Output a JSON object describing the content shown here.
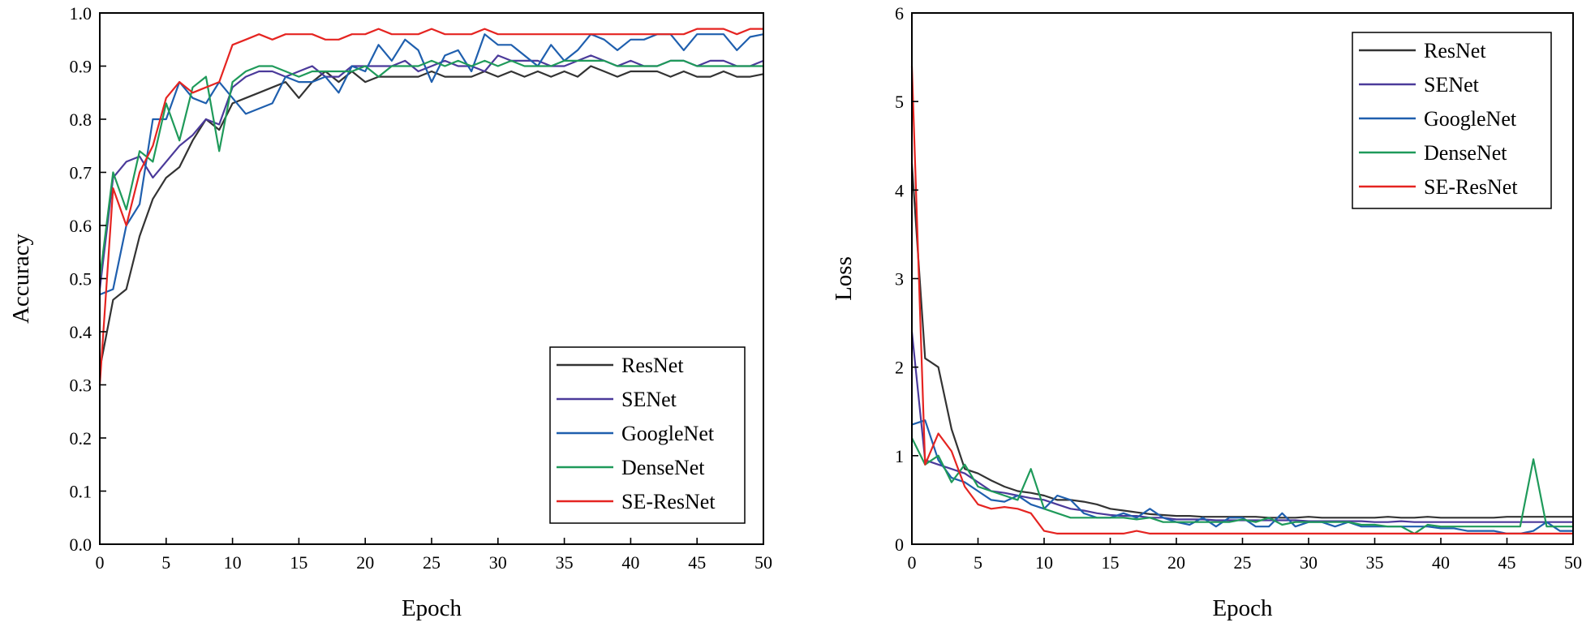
{
  "chart_data": [
    {
      "type": "line",
      "title": "",
      "xlabel": "Epoch",
      "ylabel": "Accuracy",
      "xlim": [
        0,
        50
      ],
      "ylim": [
        0,
        1.0
      ],
      "xticks": [
        "0",
        "5",
        "10",
        "15",
        "20",
        "25",
        "30",
        "35",
        "40",
        "45",
        "50"
      ],
      "yticks": [
        "0.0",
        "0.1",
        "0.2",
        "0.3",
        "0.4",
        "0.5",
        "0.6",
        "0.7",
        "0.8",
        "0.9",
        "1.0"
      ],
      "grid": false,
      "legend_position": "bottom-right",
      "series": [
        {
          "name": "ResNet",
          "color": "#333333",
          "x": [
            0,
            1,
            2,
            3,
            4,
            5,
            6,
            7,
            8,
            9,
            10,
            11,
            12,
            13,
            14,
            15,
            16,
            17,
            18,
            19,
            20,
            21,
            22,
            23,
            24,
            25,
            26,
            27,
            28,
            29,
            30,
            31,
            32,
            33,
            34,
            35,
            36,
            37,
            38,
            39,
            40,
            41,
            42,
            43,
            44,
            45,
            46,
            47,
            48,
            49,
            50
          ],
          "values": [
            0.33,
            0.46,
            0.48,
            0.58,
            0.65,
            0.69,
            0.71,
            0.76,
            0.8,
            0.78,
            0.83,
            0.84,
            0.85,
            0.86,
            0.87,
            0.84,
            0.87,
            0.89,
            0.87,
            0.89,
            0.87,
            0.88,
            0.88,
            0.88,
            0.88,
            0.89,
            0.88,
            0.88,
            0.88,
            0.89,
            0.88,
            0.89,
            0.88,
            0.89,
            0.88,
            0.89,
            0.88,
            0.9,
            0.89,
            0.88,
            0.89,
            0.89,
            0.89,
            0.88,
            0.89,
            0.88,
            0.88,
            0.89,
            0.88,
            0.88,
            0.885
          ]
        },
        {
          "name": "SENet",
          "color": "#4b3a9a",
          "x": [
            0,
            1,
            2,
            3,
            4,
            5,
            6,
            7,
            8,
            9,
            10,
            11,
            12,
            13,
            14,
            15,
            16,
            17,
            18,
            19,
            20,
            21,
            22,
            23,
            24,
            25,
            26,
            27,
            28,
            29,
            30,
            31,
            32,
            33,
            34,
            35,
            36,
            37,
            38,
            39,
            40,
            41,
            42,
            43,
            44,
            45,
            46,
            47,
            48,
            49,
            50
          ],
          "values": [
            0.48,
            0.69,
            0.72,
            0.73,
            0.69,
            0.72,
            0.75,
            0.77,
            0.8,
            0.79,
            0.86,
            0.88,
            0.89,
            0.89,
            0.88,
            0.89,
            0.9,
            0.88,
            0.88,
            0.9,
            0.9,
            0.9,
            0.9,
            0.91,
            0.89,
            0.9,
            0.91,
            0.9,
            0.9,
            0.89,
            0.92,
            0.91,
            0.91,
            0.91,
            0.9,
            0.9,
            0.91,
            0.92,
            0.91,
            0.9,
            0.91,
            0.9,
            0.9,
            0.91,
            0.91,
            0.9,
            0.91,
            0.91,
            0.9,
            0.9,
            0.91
          ]
        },
        {
          "name": "GoogleNet",
          "color": "#1f5fae",
          "x": [
            0,
            1,
            2,
            3,
            4,
            5,
            6,
            7,
            8,
            9,
            10,
            11,
            12,
            13,
            14,
            15,
            16,
            17,
            18,
            19,
            20,
            21,
            22,
            23,
            24,
            25,
            26,
            27,
            28,
            29,
            30,
            31,
            32,
            33,
            34,
            35,
            36,
            37,
            38,
            39,
            40,
            41,
            42,
            43,
            44,
            45,
            46,
            47,
            48,
            49,
            50
          ],
          "values": [
            0.47,
            0.48,
            0.6,
            0.64,
            0.8,
            0.8,
            0.87,
            0.84,
            0.83,
            0.87,
            0.84,
            0.81,
            0.82,
            0.83,
            0.88,
            0.87,
            0.87,
            0.88,
            0.85,
            0.9,
            0.89,
            0.94,
            0.91,
            0.95,
            0.93,
            0.87,
            0.92,
            0.93,
            0.89,
            0.96,
            0.94,
            0.94,
            0.92,
            0.9,
            0.94,
            0.91,
            0.93,
            0.96,
            0.95,
            0.93,
            0.95,
            0.95,
            0.96,
            0.96,
            0.93,
            0.96,
            0.96,
            0.96,
            0.93,
            0.955,
            0.96
          ]
        },
        {
          "name": "DenseNet",
          "color": "#1f9a5a",
          "x": [
            0,
            1,
            2,
            3,
            4,
            5,
            6,
            7,
            8,
            9,
            10,
            11,
            12,
            13,
            14,
            15,
            16,
            17,
            18,
            19,
            20,
            21,
            22,
            23,
            24,
            25,
            26,
            27,
            28,
            29,
            30,
            31,
            32,
            33,
            34,
            35,
            36,
            37,
            38,
            39,
            40,
            41,
            42,
            43,
            44,
            45,
            46,
            47,
            48,
            49,
            50
          ],
          "values": [
            0.5,
            0.7,
            0.63,
            0.74,
            0.72,
            0.83,
            0.76,
            0.86,
            0.88,
            0.74,
            0.87,
            0.89,
            0.9,
            0.9,
            0.89,
            0.88,
            0.89,
            0.89,
            0.89,
            0.89,
            0.9,
            0.88,
            0.9,
            0.9,
            0.9,
            0.91,
            0.9,
            0.91,
            0.9,
            0.91,
            0.9,
            0.91,
            0.9,
            0.9,
            0.9,
            0.91,
            0.91,
            0.91,
            0.91,
            0.9,
            0.9,
            0.9,
            0.9,
            0.91,
            0.91,
            0.9,
            0.9,
            0.9,
            0.9,
            0.9,
            0.9
          ]
        },
        {
          "name": "SE-ResNet",
          "color": "#e52421",
          "x": [
            0,
            1,
            2,
            3,
            4,
            5,
            6,
            7,
            8,
            9,
            10,
            11,
            12,
            13,
            14,
            15,
            16,
            17,
            18,
            19,
            20,
            21,
            22,
            23,
            24,
            25,
            26,
            27,
            28,
            29,
            30,
            31,
            32,
            33,
            34,
            35,
            36,
            37,
            38,
            39,
            40,
            41,
            42,
            43,
            44,
            45,
            46,
            47,
            48,
            49,
            50
          ],
          "values": [
            0.3,
            0.67,
            0.6,
            0.7,
            0.75,
            0.84,
            0.87,
            0.85,
            0.86,
            0.87,
            0.94,
            0.95,
            0.96,
            0.95,
            0.96,
            0.96,
            0.96,
            0.95,
            0.95,
            0.96,
            0.96,
            0.97,
            0.96,
            0.96,
            0.96,
            0.97,
            0.96,
            0.96,
            0.96,
            0.97,
            0.96,
            0.96,
            0.96,
            0.96,
            0.96,
            0.96,
            0.96,
            0.96,
            0.96,
            0.96,
            0.96,
            0.96,
            0.96,
            0.96,
            0.96,
            0.97,
            0.97,
            0.97,
            0.96,
            0.97,
            0.97
          ]
        }
      ]
    },
    {
      "type": "line",
      "title": "",
      "xlabel": "Epoch",
      "ylabel": "Loss",
      "xlim": [
        0,
        50
      ],
      "ylim": [
        0,
        6
      ],
      "xticks": [
        "0",
        "5",
        "10",
        "15",
        "20",
        "25",
        "30",
        "35",
        "40",
        "45",
        "50"
      ],
      "yticks": [
        "0",
        "1",
        "2",
        "3",
        "4",
        "5",
        "6"
      ],
      "grid": false,
      "legend_position": "top-right",
      "series": [
        {
          "name": "ResNet",
          "color": "#333333",
          "x": [
            0,
            1,
            2,
            3,
            4,
            5,
            6,
            7,
            8,
            9,
            10,
            11,
            12,
            13,
            14,
            15,
            16,
            17,
            18,
            19,
            20,
            21,
            22,
            23,
            24,
            25,
            26,
            27,
            28,
            29,
            30,
            31,
            32,
            33,
            34,
            35,
            36,
            37,
            38,
            39,
            40,
            41,
            42,
            43,
            44,
            45,
            46,
            47,
            48,
            49,
            50
          ],
          "values": [
            4.3,
            2.1,
            2.0,
            1.3,
            0.85,
            0.8,
            0.72,
            0.65,
            0.6,
            0.58,
            0.55,
            0.5,
            0.5,
            0.48,
            0.45,
            0.4,
            0.38,
            0.36,
            0.34,
            0.33,
            0.32,
            0.32,
            0.31,
            0.31,
            0.31,
            0.31,
            0.31,
            0.3,
            0.3,
            0.3,
            0.31,
            0.3,
            0.3,
            0.3,
            0.3,
            0.3,
            0.31,
            0.3,
            0.3,
            0.31,
            0.3,
            0.3,
            0.3,
            0.3,
            0.3,
            0.31,
            0.31,
            0.31,
            0.31,
            0.31,
            0.31
          ]
        },
        {
          "name": "SENet",
          "color": "#4b3a9a",
          "x": [
            0,
            1,
            2,
            3,
            4,
            5,
            6,
            7,
            8,
            9,
            10,
            11,
            12,
            13,
            14,
            15,
            16,
            17,
            18,
            19,
            20,
            21,
            22,
            23,
            24,
            25,
            26,
            27,
            28,
            29,
            30,
            31,
            32,
            33,
            34,
            35,
            36,
            37,
            38,
            39,
            40,
            41,
            42,
            43,
            44,
            45,
            46,
            47,
            48,
            49,
            50
          ],
          "values": [
            2.4,
            0.95,
            0.9,
            0.85,
            0.8,
            0.7,
            0.6,
            0.58,
            0.55,
            0.52,
            0.5,
            0.45,
            0.4,
            0.38,
            0.35,
            0.33,
            0.32,
            0.32,
            0.3,
            0.3,
            0.28,
            0.28,
            0.28,
            0.27,
            0.27,
            0.27,
            0.27,
            0.27,
            0.27,
            0.27,
            0.26,
            0.26,
            0.26,
            0.26,
            0.26,
            0.25,
            0.25,
            0.26,
            0.25,
            0.25,
            0.25,
            0.25,
            0.25,
            0.25,
            0.25,
            0.25,
            0.25,
            0.25,
            0.25,
            0.25,
            0.25
          ]
        },
        {
          "name": "GoogleNet",
          "color": "#1f5fae",
          "x": [
            0,
            1,
            2,
            3,
            4,
            5,
            6,
            7,
            8,
            9,
            10,
            11,
            12,
            13,
            14,
            15,
            16,
            17,
            18,
            19,
            20,
            21,
            22,
            23,
            24,
            25,
            26,
            27,
            28,
            29,
            30,
            31,
            32,
            33,
            34,
            35,
            36,
            37,
            38,
            39,
            40,
            41,
            42,
            43,
            44,
            45,
            46,
            47,
            48,
            49,
            50
          ],
          "values": [
            1.35,
            1.4,
            0.95,
            0.75,
            0.7,
            0.6,
            0.5,
            0.48,
            0.55,
            0.45,
            0.4,
            0.55,
            0.5,
            0.35,
            0.3,
            0.3,
            0.35,
            0.3,
            0.4,
            0.3,
            0.25,
            0.22,
            0.3,
            0.2,
            0.3,
            0.3,
            0.2,
            0.2,
            0.35,
            0.2,
            0.25,
            0.25,
            0.2,
            0.25,
            0.2,
            0.2,
            0.2,
            0.2,
            0.2,
            0.2,
            0.18,
            0.18,
            0.15,
            0.15,
            0.15,
            0.12,
            0.12,
            0.15,
            0.25,
            0.15,
            0.15
          ]
        },
        {
          "name": "DenseNet",
          "color": "#1f9a5a",
          "x": [
            0,
            1,
            2,
            3,
            4,
            5,
            6,
            7,
            8,
            9,
            10,
            11,
            12,
            13,
            14,
            15,
            16,
            17,
            18,
            19,
            20,
            21,
            22,
            23,
            24,
            25,
            26,
            27,
            28,
            29,
            30,
            31,
            32,
            33,
            34,
            35,
            36,
            37,
            38,
            39,
            40,
            41,
            42,
            43,
            44,
            45,
            46,
            47,
            48,
            49,
            50
          ],
          "values": [
            1.2,
            0.9,
            1.0,
            0.7,
            0.9,
            0.65,
            0.6,
            0.55,
            0.5,
            0.85,
            0.4,
            0.35,
            0.3,
            0.3,
            0.3,
            0.3,
            0.3,
            0.28,
            0.3,
            0.25,
            0.25,
            0.25,
            0.25,
            0.25,
            0.25,
            0.28,
            0.25,
            0.3,
            0.22,
            0.25,
            0.25,
            0.25,
            0.25,
            0.25,
            0.22,
            0.22,
            0.2,
            0.2,
            0.12,
            0.22,
            0.2,
            0.2,
            0.2,
            0.2,
            0.2,
            0.2,
            0.2,
            0.96,
            0.2,
            0.2,
            0.2
          ]
        },
        {
          "name": "SE-ResNet",
          "color": "#e52421",
          "x": [
            0,
            1,
            2,
            3,
            4,
            5,
            6,
            7,
            8,
            9,
            10,
            11,
            12,
            13,
            14,
            15,
            16,
            17,
            18,
            19,
            20,
            21,
            22,
            23,
            24,
            25,
            26,
            27,
            28,
            29,
            30,
            31,
            32,
            33,
            34,
            35,
            36,
            37,
            38,
            39,
            40,
            41,
            42,
            43,
            44,
            45,
            46,
            47,
            48,
            49,
            50
          ],
          "values": [
            5.4,
            0.9,
            1.25,
            1.05,
            0.65,
            0.45,
            0.4,
            0.42,
            0.4,
            0.35,
            0.15,
            0.12,
            0.12,
            0.12,
            0.12,
            0.12,
            0.12,
            0.15,
            0.12,
            0.12,
            0.12,
            0.12,
            0.12,
            0.12,
            0.12,
            0.12,
            0.12,
            0.12,
            0.12,
            0.12,
            0.12,
            0.12,
            0.12,
            0.12,
            0.12,
            0.12,
            0.12,
            0.12,
            0.12,
            0.12,
            0.12,
            0.12,
            0.12,
            0.12,
            0.12,
            0.12,
            0.12,
            0.12,
            0.12,
            0.12,
            0.12
          ]
        }
      ]
    }
  ]
}
